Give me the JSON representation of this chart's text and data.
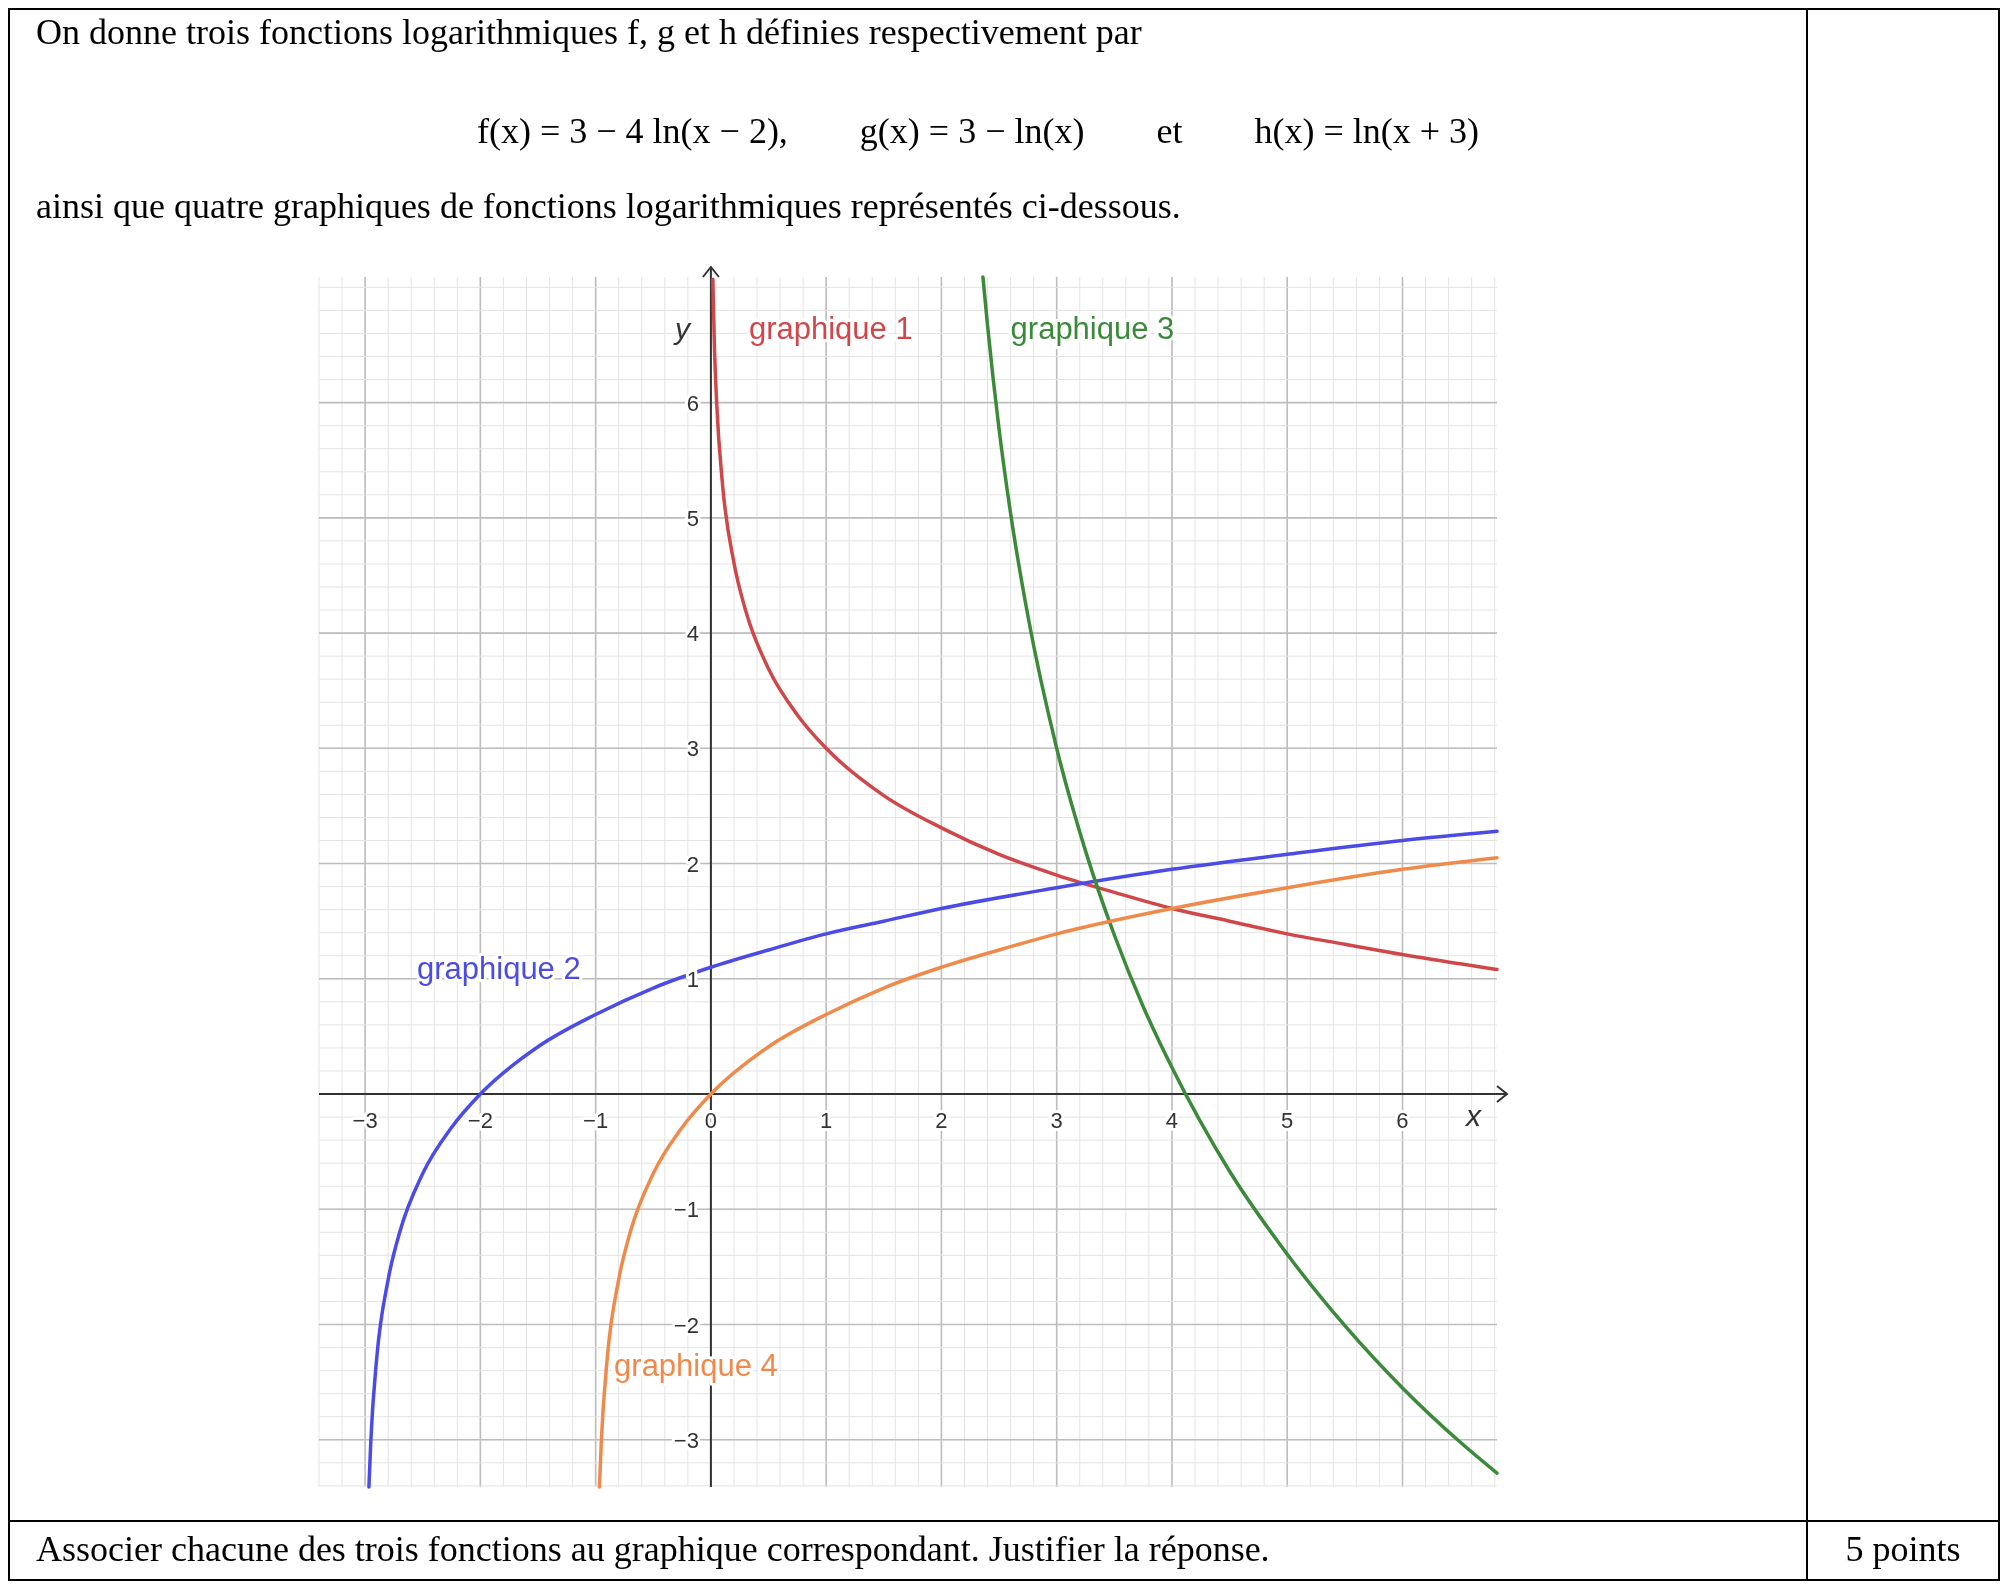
{
  "chart_data": {
    "type": "line",
    "title": "On donne trois fonctions logarithmiques f, g et h définies respectivement par",
    "annotations": [
      "f(x) = 3 − 4 ln(x − 2),        g(x) = 3 − ln(x)        et        h(x) = ln(x + 3)",
      "ainsi que quatre graphiques de fonctions logarithmiques représentés ci-dessous.",
      "Associer chacune des trois fonctions au graphique correspondant. Justifier la réponse.",
      "5 points"
    ],
    "xlabel": "x",
    "ylabel": "y",
    "xlim": [
      -3.4,
      6.82
    ],
    "ylim": [
      -3.41,
      7.09
    ],
    "xticks": [
      {
        "value": -3,
        "label": "−3"
      },
      {
        "value": -2,
        "label": "−2"
      },
      {
        "value": -1,
        "label": "−1"
      },
      0,
      1,
      2,
      3,
      4,
      5,
      6
    ],
    "yticks": [
      {
        "value": -3,
        "label": "−3"
      },
      {
        "value": -2,
        "label": "−2"
      },
      {
        "value": -1,
        "label": "−1"
      },
      1,
      2,
      3,
      4,
      5,
      6
    ],
    "grid": true,
    "marker": "none",
    "line_style": "solid",
    "series": [
      {
        "name": "graphique 1",
        "color": "#d0474a",
        "x": [
          0.017,
          0.03,
          0.05,
          0.1,
          0.2,
          0.3,
          0.5,
          0.75,
          1,
          1.5,
          2,
          2.5,
          3,
          3.5,
          4,
          4.5,
          5,
          5.5,
          6,
          6.5,
          6.82
        ],
        "values": [
          7.07,
          6.51,
          6.0,
          5.3,
          4.61,
          4.2,
          3.69,
          3.29,
          3,
          2.59,
          2.31,
          2.08,
          1.9,
          1.75,
          1.61,
          1.5,
          1.39,
          1.3,
          1.21,
          1.13,
          1.08
        ]
      },
      {
        "name": "graphique 2",
        "color": "#4b4be8",
        "x": [
          -2.967,
          -2.95,
          -2.9,
          -2.8,
          -2.7,
          -2.5,
          -2.25,
          -2,
          -1.5,
          -1,
          -0.5,
          0,
          0.5,
          1,
          1.5,
          2,
          3,
          4,
          5,
          6,
          6.82
        ],
        "values": [
          -3.41,
          -3.0,
          -2.3,
          -1.61,
          -1.2,
          -0.69,
          -0.29,
          0,
          0.41,
          0.69,
          0.92,
          1.1,
          1.25,
          1.39,
          1.5,
          1.61,
          1.79,
          1.95,
          2.08,
          2.2,
          2.28
        ]
      },
      {
        "name": "graphique 3",
        "color": "#3a8a3a",
        "x": [
          2.36,
          2.4,
          2.5,
          2.6,
          2.75,
          3,
          3.25,
          3.5,
          3.75,
          4,
          4.5,
          5,
          5.5,
          6,
          6.5,
          6.82
        ],
        "values": [
          7.09,
          6.67,
          5.77,
          5.04,
          4.15,
          3,
          2.11,
          1.38,
          0.76,
          0.23,
          -0.67,
          -1.39,
          -2.01,
          -2.55,
          -3.02,
          -3.29
        ]
      },
      {
        "name": "graphique 4",
        "color": "#f08a4b",
        "x": [
          -0.967,
          -0.95,
          -0.9,
          -0.8,
          -0.7,
          -0.5,
          -0.25,
          0,
          0.5,
          1,
          1.5,
          2,
          2.5,
          3,
          4,
          5,
          6,
          6.82
        ],
        "values": [
          -3.41,
          -3.0,
          -2.3,
          -1.61,
          -1.2,
          -0.69,
          -0.29,
          0,
          0.41,
          0.69,
          0.92,
          1.1,
          1.25,
          1.39,
          1.61,
          1.79,
          1.95,
          2.05
        ]
      }
    ]
  }
}
